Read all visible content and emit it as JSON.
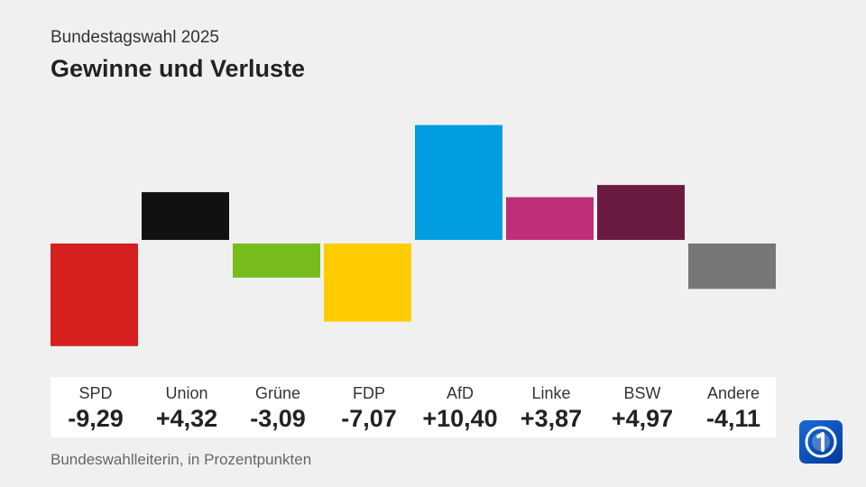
{
  "header": {
    "subtitle": "Bundestagswahl 2025",
    "title": "Gewinne und Verluste"
  },
  "source": "Bundeswahlleiterin, in Prozentpunkten",
  "logo": {
    "icon": "ard-one-logo-icon"
  },
  "chart_data": {
    "type": "bar",
    "categories": [
      "SPD",
      "Union",
      "Grüne",
      "FDP",
      "AfD",
      "Linke",
      "BSW",
      "Andere"
    ],
    "values": [
      -9.29,
      4.32,
      -3.09,
      -7.07,
      10.4,
      3.87,
      4.97,
      -4.11
    ],
    "value_labels": [
      "-9,29",
      "+4,32",
      "-3,09",
      "-7,07",
      "+10,40",
      "+3,87",
      "+4,97",
      "-4,11"
    ],
    "colors": [
      "#d61f1f",
      "#111111",
      "#78bc1b",
      "#ffcc00",
      "#009ee0",
      "#bf2f78",
      "#6b1a42",
      "#777777"
    ],
    "title": "Gewinne und Verluste",
    "ylabel": "Prozentpunkte",
    "ylim": [
      -10.5,
      11.5
    ],
    "grid": false,
    "legend": "none"
  }
}
